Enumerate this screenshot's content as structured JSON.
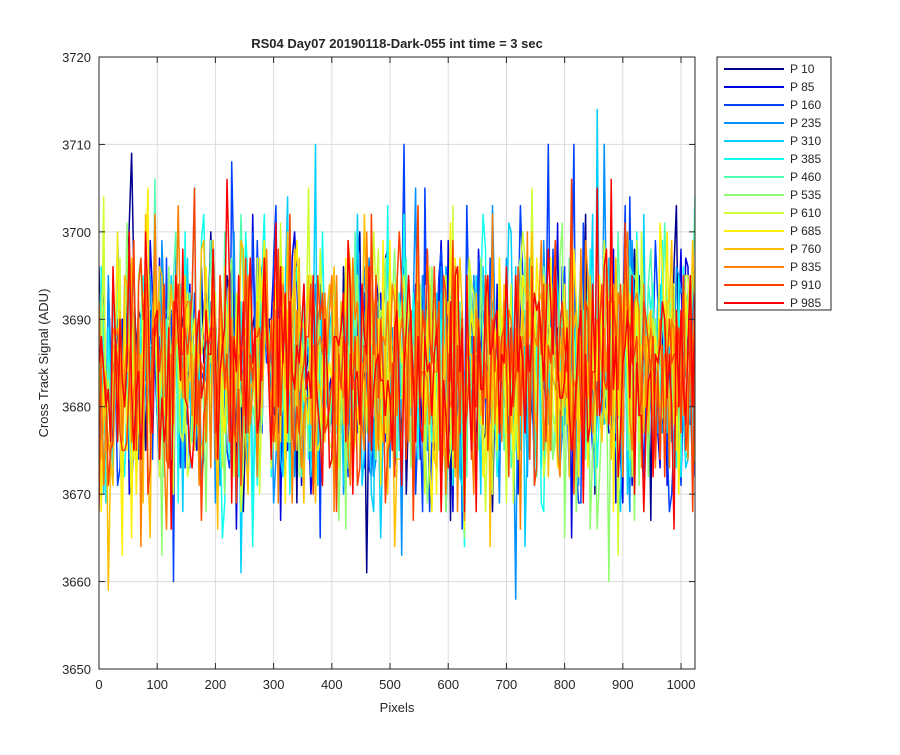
{
  "chart_data": {
    "type": "line",
    "title": "RS04 Day07 20190118-Dark-055 int time = 3 sec",
    "xlabel": "Pixels",
    "ylabel": "Cross Track Signal (ADU)",
    "xlim": [
      0,
      1024
    ],
    "ylim": [
      3650,
      3720
    ],
    "xticks": [
      0,
      100,
      200,
      300,
      400,
      500,
      600,
      700,
      800,
      900,
      1000
    ],
    "yticks": [
      3650,
      3660,
      3670,
      3680,
      3690,
      3700,
      3710,
      3720
    ],
    "grid": true,
    "legend_position": "outside-right",
    "x_step": 4,
    "series": [
      {
        "name": "P 10",
        "color": "#00008f",
        "mean": 3684.5,
        "sd": 8.0
      },
      {
        "name": "P 85",
        "color": "#0000e0",
        "mean": 3684.4,
        "sd": 8.0
      },
      {
        "name": "P 160",
        "color": "#0040ff",
        "mean": 3684.5,
        "sd": 7.9
      },
      {
        "name": "P 235",
        "color": "#0090ff",
        "mean": 3684.3,
        "sd": 7.9
      },
      {
        "name": "P 310",
        "color": "#00cfff",
        "mean": 3684.4,
        "sd": 7.9
      },
      {
        "name": "P 385",
        "color": "#10ffef",
        "mean": 3684.6,
        "sd": 7.8
      },
      {
        "name": "P 460",
        "color": "#50ffaf",
        "mean": 3684.4,
        "sd": 7.8
      },
      {
        "name": "P 535",
        "color": "#90ff6f",
        "mean": 3684.5,
        "sd": 7.8
      },
      {
        "name": "P 610",
        "color": "#cfff30",
        "mean": 3684.3,
        "sd": 7.8
      },
      {
        "name": "P 685",
        "color": "#ffef00",
        "mean": 3684.4,
        "sd": 7.7
      },
      {
        "name": "P 760",
        "color": "#ffbf00",
        "mean": 3684.5,
        "sd": 7.7
      },
      {
        "name": "P 835",
        "color": "#ff7f00",
        "mean": 3684.4,
        "sd": 7.7
      },
      {
        "name": "P 910",
        "color": "#ff3f00",
        "mean": 3684.5,
        "sd": 7.6
      },
      {
        "name": "P 985",
        "color": "#ff0000",
        "mean": 3684.4,
        "sd": 7.6
      }
    ]
  }
}
